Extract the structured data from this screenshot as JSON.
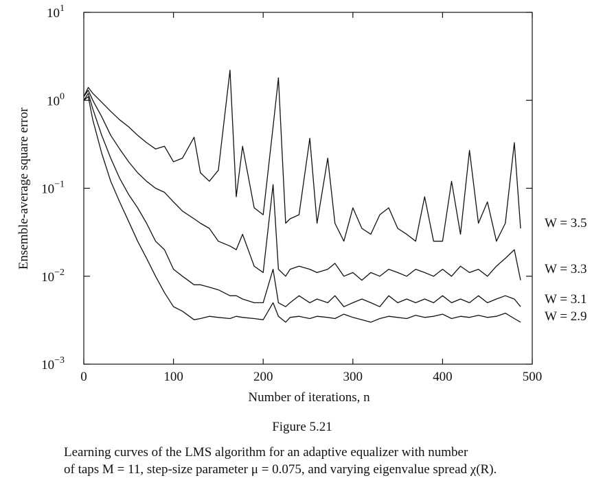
{
  "chart_data": {
    "type": "line",
    "log_y": true,
    "ylabel": "Ensemble-average square error",
    "xlabel": "Number of iterations, n",
    "figure_label": "Figure 5.21",
    "caption": [
      "Learning curves of the LMS algorithm for an adaptive equalizer with number",
      "of taps M = 11, step-size parameter μ = 0.075, and varying eigenvalue spread χ(R)."
    ],
    "xlim": [
      0,
      500
    ],
    "xticks": [
      0,
      100,
      200,
      300,
      400,
      500
    ],
    "ylim": [
      0.001,
      10
    ],
    "yticks": [
      {
        "value": 0.001,
        "label": "10",
        "exponent": "−3"
      },
      {
        "value": 0.01,
        "label": "10",
        "exponent": "−2"
      },
      {
        "value": 0.1,
        "label": "10",
        "exponent": "−1"
      },
      {
        "value": 1,
        "label": "10",
        "exponent": "0"
      },
      {
        "value": 10,
        "label": "10",
        "exponent": "1"
      }
    ],
    "x": [
      0,
      5,
      10,
      20,
      30,
      40,
      50,
      60,
      70,
      80,
      90,
      100,
      110,
      123,
      130,
      140,
      150,
      163,
      170,
      177,
      190,
      200,
      211,
      217,
      225,
      230,
      240,
      252,
      260,
      272,
      280,
      290,
      300,
      310,
      320,
      330,
      340,
      350,
      360,
      370,
      380,
      390,
      400,
      410,
      420,
      430,
      440,
      450,
      460,
      470,
      480,
      487
    ],
    "series": [
      {
        "name": "W = 3.5",
        "color": "#111111",
        "values": [
          1.1,
          1.4,
          1.2,
          0.95,
          0.75,
          0.6,
          0.5,
          0.4,
          0.33,
          0.28,
          0.3,
          0.2,
          0.22,
          0.38,
          0.15,
          0.12,
          0.16,
          2.2,
          0.08,
          0.3,
          0.06,
          0.05,
          0.5,
          1.8,
          0.04,
          0.045,
          0.05,
          0.37,
          0.04,
          0.22,
          0.04,
          0.025,
          0.06,
          0.035,
          0.03,
          0.05,
          0.06,
          0.035,
          0.03,
          0.025,
          0.08,
          0.025,
          0.025,
          0.12,
          0.03,
          0.27,
          0.04,
          0.07,
          0.025,
          0.04,
          0.33,
          0.035
        ]
      },
      {
        "name": "W = 3.3",
        "color": "#111111",
        "values": [
          1.1,
          1.3,
          1.0,
          0.65,
          0.4,
          0.28,
          0.2,
          0.15,
          0.12,
          0.1,
          0.09,
          0.07,
          0.055,
          0.045,
          0.04,
          0.035,
          0.025,
          0.022,
          0.02,
          0.03,
          0.013,
          0.011,
          0.11,
          0.012,
          0.01,
          0.012,
          0.013,
          0.012,
          0.011,
          0.012,
          0.014,
          0.01,
          0.011,
          0.009,
          0.011,
          0.01,
          0.012,
          0.011,
          0.01,
          0.012,
          0.011,
          0.01,
          0.012,
          0.01,
          0.013,
          0.011,
          0.012,
          0.01,
          0.013,
          0.016,
          0.02,
          0.009
        ]
      },
      {
        "name": "W = 3.1",
        "color": "#111111",
        "values": [
          1.0,
          1.2,
          0.8,
          0.4,
          0.22,
          0.13,
          0.085,
          0.06,
          0.04,
          0.025,
          0.02,
          0.012,
          0.01,
          0.008,
          0.008,
          0.0075,
          0.007,
          0.006,
          0.006,
          0.0055,
          0.005,
          0.005,
          0.012,
          0.005,
          0.0045,
          0.005,
          0.006,
          0.005,
          0.0055,
          0.005,
          0.006,
          0.0045,
          0.005,
          0.0055,
          0.005,
          0.0045,
          0.006,
          0.005,
          0.0055,
          0.005,
          0.0055,
          0.005,
          0.006,
          0.005,
          0.0055,
          0.005,
          0.006,
          0.005,
          0.0055,
          0.006,
          0.0055,
          0.0045
        ]
      },
      {
        "name": "W = 2.9",
        "color": "#111111",
        "values": [
          1.0,
          1.1,
          0.6,
          0.25,
          0.12,
          0.07,
          0.042,
          0.025,
          0.016,
          0.01,
          0.0065,
          0.0045,
          0.004,
          0.0032,
          0.0033,
          0.0035,
          0.0034,
          0.0033,
          0.0035,
          0.0034,
          0.0033,
          0.0032,
          0.005,
          0.0035,
          0.003,
          0.0034,
          0.0035,
          0.0033,
          0.0035,
          0.0034,
          0.0033,
          0.0037,
          0.0034,
          0.0032,
          0.003,
          0.0033,
          0.0035,
          0.0034,
          0.0033,
          0.0036,
          0.0034,
          0.0035,
          0.0037,
          0.0033,
          0.0035,
          0.0034,
          0.0036,
          0.0034,
          0.0035,
          0.0038,
          0.0033,
          0.003
        ]
      }
    ]
  }
}
